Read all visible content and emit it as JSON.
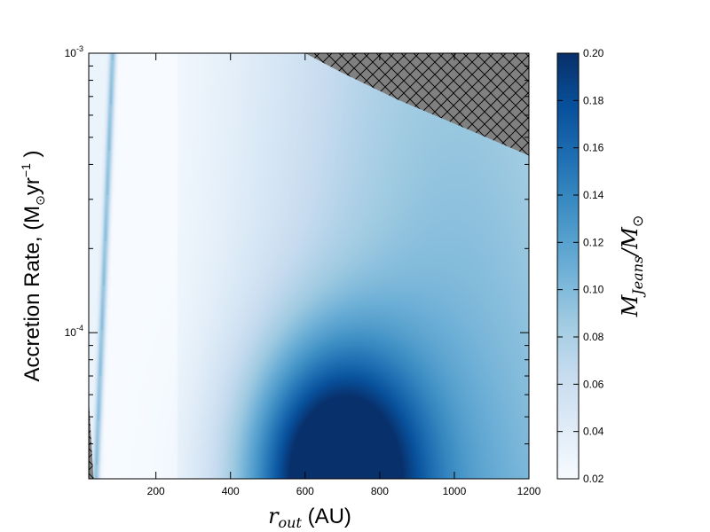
{
  "chart_data": {
    "type": "heatmap",
    "xlabel_math": "r",
    "xlabel_sub": "out",
    "xlabel_units": " (AU)",
    "ylabel_text": "Accretion Rate, (M",
    "ylabel_sun": "⊙",
    "ylabel_unit": "yr",
    "ylabel_exp": "−1",
    "ylabel_close": " )",
    "x_range": [
      20,
      1200
    ],
    "y_range": [
      3e-05,
      0.001
    ],
    "y_scale": "log",
    "x_ticks": [
      {
        "value": 200,
        "label": "200"
      },
      {
        "value": 400,
        "label": "400"
      },
      {
        "value": 600,
        "label": "600"
      },
      {
        "value": 800,
        "label": "800"
      },
      {
        "value": 1000,
        "label": "1000"
      },
      {
        "value": 1200,
        "label": "1200"
      }
    ],
    "y_ticks": [
      {
        "value": 0.0001,
        "base": "10",
        "exp": "-4"
      },
      {
        "value": 0.001,
        "base": "10",
        "exp": "-3"
      }
    ],
    "colorbar": {
      "label_M": "M",
      "label_sub": "Jeans",
      "label_div": "/",
      "label_M2": "M",
      "label_sun": "⊙",
      "range": [
        0.02,
        0.2
      ],
      "ticks": [
        "0.02",
        "0.04",
        "0.06",
        "0.08",
        "0.10",
        "0.12",
        "0.14",
        "0.16",
        "0.18",
        "0.20"
      ],
      "colormap": "Blues"
    },
    "masked_regions": [
      {
        "name": "upper-right",
        "fill": "#808080",
        "pattern": "crosshatch",
        "boundary": [
          [
            600,
            0.001
          ],
          [
            700,
            0.00085
          ],
          [
            850,
            0.00068
          ],
          [
            1000,
            0.00056
          ],
          [
            1200,
            0.00043
          ]
        ]
      },
      {
        "name": "lower-left",
        "fill": "#808080",
        "pattern": "crosshatch",
        "boundary": [
          [
            20,
            5.8e-05
          ],
          [
            33,
            3e-05
          ]
        ]
      }
    ],
    "features": {
      "ridge": {
        "x_at_ymin": 40,
        "x_at_ymax": 85,
        "value": 0.1
      },
      "peak": {
        "x": 680,
        "y": 3e-05,
        "value": 0.2
      }
    }
  }
}
